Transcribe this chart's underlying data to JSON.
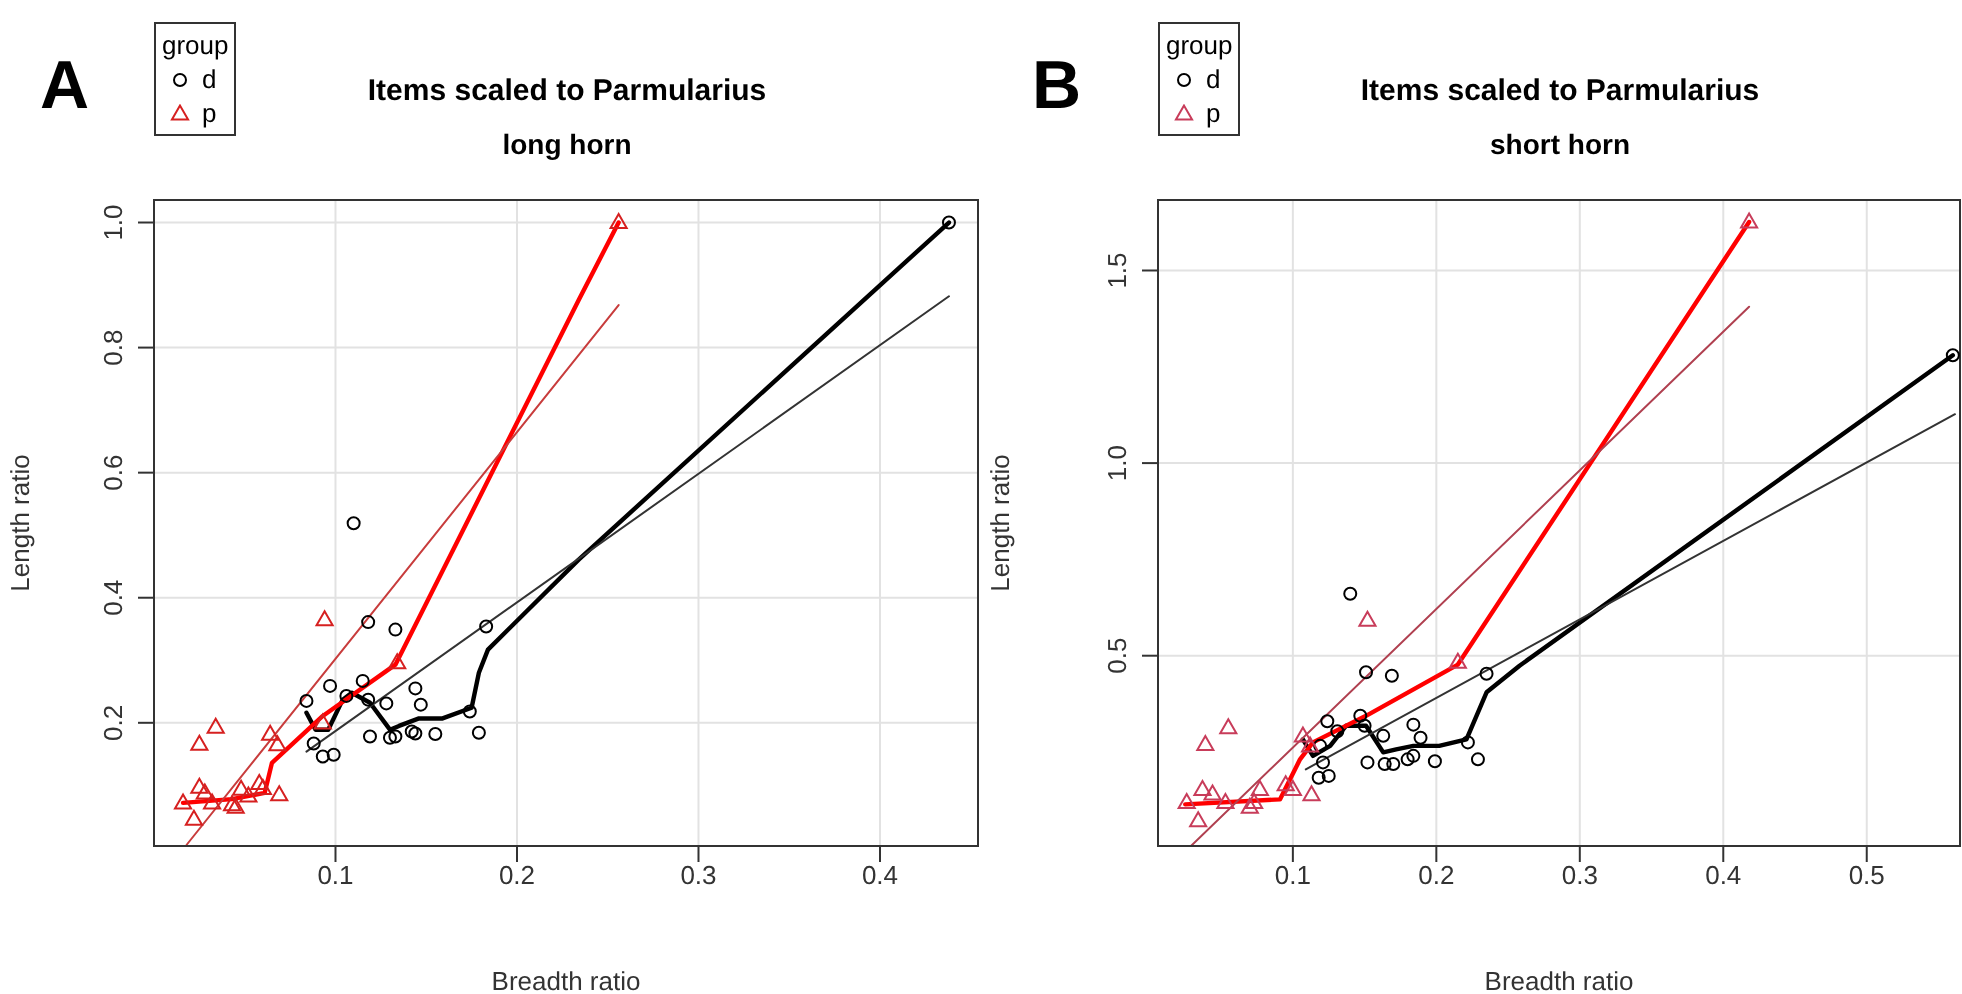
{
  "chart_data": [
    {
      "type": "scatter",
      "title": "Items scaled to Parmularius",
      "subtitle": "long horn",
      "xlabel": "Breadth ratio",
      "ylabel": "Length ratio",
      "legend_title": "group",
      "legend": "top left",
      "grid": true,
      "annotations": [
        "A"
      ],
      "xlim": [
        0,
        0.454
      ],
      "ylim": [
        0.003,
        1.036
      ],
      "xticks": [
        0.1,
        0.2,
        0.3,
        0.4
      ],
      "yticks": [
        0.2,
        0.4,
        0.6,
        0.8,
        {
          "value": 1,
          "label": "1.0"
        }
      ],
      "series": [
        {
          "name": "d",
          "marker": "circle",
          "color": "#000000",
          "x": [
            0.084,
            0.088,
            0.093,
            0.099,
            0.097,
            0.11,
            0.106,
            0.115,
            0.118,
            0.119,
            0.118,
            0.128,
            0.13,
            0.133,
            0.133,
            0.142,
            0.144,
            0.144,
            0.147,
            0.155,
            0.174,
            0.179,
            0.183,
            0.438
          ],
          "values": [
            0.235,
            0.167,
            0.146,
            0.149,
            0.259,
            0.519,
            0.243,
            0.267,
            0.361,
            0.178,
            0.237,
            0.231,
            0.176,
            0.178,
            0.349,
            0.186,
            0.183,
            0.255,
            0.229,
            0.182,
            0.218,
            0.184,
            0.354,
            1.0
          ]
        },
        {
          "name": "p",
          "marker": "triangle",
          "color": "#d62020",
          "x": [
            0.016,
            0.022,
            0.025,
            0.025,
            0.028,
            0.034,
            0.032,
            0.043,
            0.045,
            0.048,
            0.052,
            0.058,
            0.06,
            0.064,
            0.068,
            0.069,
            0.094,
            0.093,
            0.134,
            0.256
          ],
          "values": [
            0.072,
            0.046,
            0.166,
            0.097,
            0.088,
            0.193,
            0.072,
            0.069,
            0.065,
            0.094,
            0.083,
            0.103,
            0.095,
            0.182,
            0.165,
            0.085,
            0.365,
            0.2,
            0.296,
            1.0
          ]
        },
        {
          "type": "line",
          "marker": "none",
          "line_style": "solid",
          "color": "#000000",
          "x": [
            0.084,
            0.089,
            0.096,
            0.104,
            0.109,
            0.119,
            0.13,
            0.135,
            0.146,
            0.159,
            0.175,
            0.179,
            0.184,
            0.234,
            0.438
          ],
          "values": [
            0.216,
            0.189,
            0.189,
            0.237,
            0.248,
            0.232,
            0.189,
            0.195,
            0.207,
            0.207,
            0.224,
            0.28,
            0.317,
            0.461,
            1.0
          ]
        },
        {
          "type": "line",
          "marker": "none",
          "line_style": "solid",
          "color": "#333333",
          "x": [
            0.084,
            0.438
          ],
          "values": [
            0.154,
            0.882
          ]
        },
        {
          "type": "line",
          "marker": "none",
          "line_style": "solid",
          "color": "#ff0000",
          "x": [
            0.016,
            0.043,
            0.061,
            0.065,
            0.093,
            0.133,
            0.234,
            0.256
          ],
          "values": [
            0.072,
            0.078,
            0.088,
            0.136,
            0.211,
            0.293,
            0.876,
            1.0
          ]
        },
        {
          "type": "line",
          "marker": "none",
          "line_style": "solid",
          "color": "#c83c3c",
          "x": [
            0.018,
            0.256
          ],
          "values": [
            0.005,
            0.868
          ]
        }
      ]
    },
    {
      "type": "scatter",
      "title": "Items scaled to Parmularius",
      "subtitle": "short horn",
      "xlabel": "Breadth ratio",
      "ylabel": "Length ratio",
      "legend_title": "group",
      "legend": "top left",
      "grid": true,
      "annotations": [
        "B"
      ],
      "xlim": [
        0.006,
        0.565
      ],
      "ylim": [
        0.006,
        1.683
      ],
      "xticks": [
        0.1,
        0.2,
        0.3,
        0.4,
        0.5
      ],
      "yticks": [
        0.5,
        {
          "value": 1,
          "label": "1.0"
        },
        1.5
      ],
      "series": [
        {
          "name": "d",
          "marker": "circle",
          "color": "#000000",
          "x": [
            0.14,
            0.151,
            0.169,
            0.124,
            0.147,
            0.15,
            0.131,
            0.119,
            0.125,
            0.118,
            0.121,
            0.152,
            0.163,
            0.164,
            0.17,
            0.18,
            0.184,
            0.184,
            0.189,
            0.199,
            0.222,
            0.229,
            0.235,
            0.56
          ],
          "values": [
            0.661,
            0.457,
            0.448,
            0.33,
            0.344,
            0.318,
            0.304,
            0.266,
            0.188,
            0.183,
            0.223,
            0.223,
            0.292,
            0.219,
            0.219,
            0.231,
            0.24,
            0.321,
            0.287,
            0.226,
            0.275,
            0.231,
            0.453,
            1.28
          ]
        },
        {
          "name": "p",
          "marker": "triangle",
          "color": "#c83c5a",
          "x": [
            0.026,
            0.034,
            0.039,
            0.037,
            0.044,
            0.055,
            0.053,
            0.07,
            0.073,
            0.077,
            0.095,
            0.107,
            0.112,
            0.1,
            0.113,
            0.152,
            0.215,
            0.418
          ],
          "values": [
            0.119,
            0.072,
            0.27,
            0.153,
            0.141,
            0.313,
            0.119,
            0.107,
            0.119,
            0.153,
            0.165,
            0.292,
            0.266,
            0.153,
            0.139,
            0.592,
            0.483,
            1.626
          ]
        },
        {
          "type": "line",
          "marker": "none",
          "line_style": "solid",
          "color": "#000000",
          "x": [
            0.107,
            0.114,
            0.126,
            0.137,
            0.151,
            0.163,
            0.172,
            0.184,
            0.202,
            0.221,
            0.235,
            0.258,
            0.56
          ],
          "values": [
            0.283,
            0.24,
            0.266,
            0.318,
            0.318,
            0.249,
            0.257,
            0.266,
            0.266,
            0.283,
            0.405,
            0.474,
            1.28
          ]
        },
        {
          "type": "line",
          "marker": "none",
          "line_style": "solid",
          "color": "#333333",
          "x": [
            0.109,
            0.5615
          ],
          "values": [
            0.205,
            1.127
          ]
        },
        {
          "type": "line",
          "marker": "none",
          "line_style": "solid",
          "color": "#ff0000",
          "x": [
            0.025,
            0.091,
            0.105,
            0.114,
            0.151,
            0.215,
            0.418
          ],
          "values": [
            0.114,
            0.127,
            0.231,
            0.275,
            0.344,
            0.477,
            1.626
          ]
        },
        {
          "type": "line",
          "marker": "none",
          "line_style": "solid",
          "color": "#b04050",
          "x": [
            0.029,
            0.418
          ],
          "values": [
            0.006,
            1.406
          ]
        }
      ]
    }
  ]
}
